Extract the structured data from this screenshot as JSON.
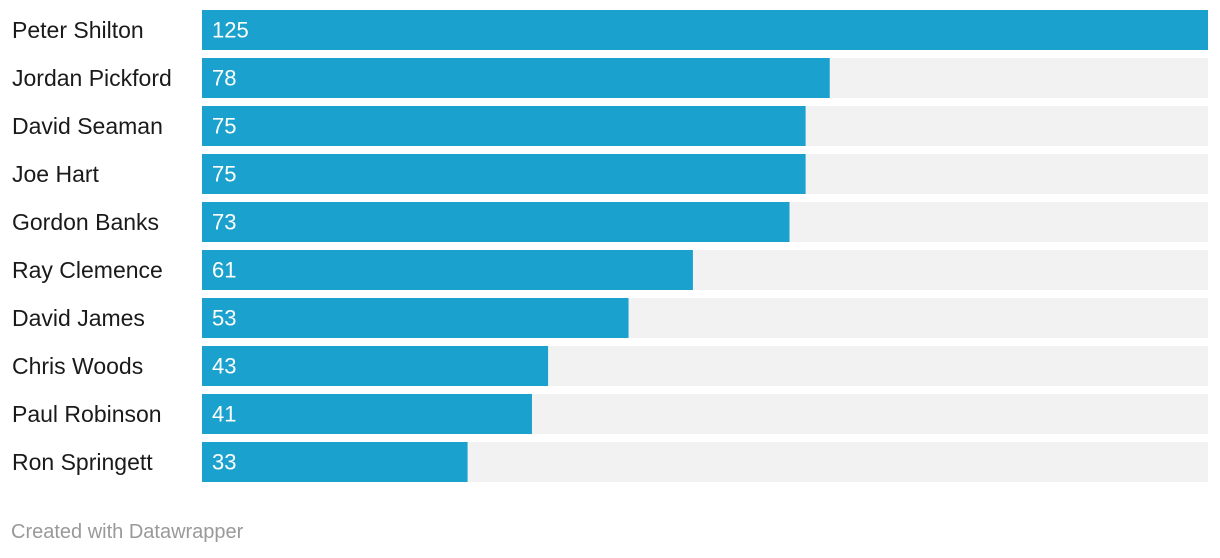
{
  "chart_data": {
    "type": "bar",
    "orientation": "horizontal",
    "categories": [
      "Peter Shilton",
      "Jordan Pickford",
      "David Seaman",
      "Joe Hart",
      "Gordon Banks",
      "Ray Clemence",
      "David James",
      "Chris Woods",
      "Paul Robinson",
      "Ron Springett"
    ],
    "values": [
      125,
      78,
      75,
      75,
      73,
      61,
      53,
      43,
      41,
      33
    ],
    "xlim": [
      0,
      125
    ],
    "grid": false,
    "colors": {
      "bar": "#1ba1cd",
      "track": "#f2f2f2",
      "label": "#1a1a1a",
      "value_label": "#ffffff",
      "footer": "#999999"
    }
  },
  "footer": {
    "credit": "Created with Datawrapper"
  }
}
